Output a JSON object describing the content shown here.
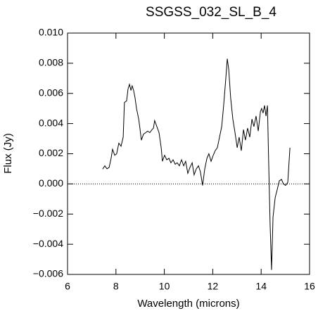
{
  "chart_data": {
    "type": "line",
    "title": "SSGSS_032_SL_B_4",
    "x_label": "Wavelength (microns)",
    "y_label": "Flux (Jy)",
    "color": "#000000",
    "x": [
      7.45,
      7.54,
      7.63,
      7.72,
      7.8,
      7.86,
      7.95,
      8.03,
      8.12,
      8.21,
      8.3,
      8.35,
      8.44,
      8.5,
      8.56,
      8.62,
      8.67,
      8.73,
      8.79,
      8.85,
      8.94,
      8.99,
      9.05,
      9.14,
      9.23,
      9.31,
      9.4,
      9.49,
      9.55,
      9.6,
      9.69,
      9.78,
      9.87,
      9.92,
      10.01,
      10.1,
      10.19,
      10.27,
      10.36,
      10.45,
      10.53,
      10.62,
      10.71,
      10.8,
      10.88,
      10.97,
      11.06,
      11.15,
      11.23,
      11.32,
      11.41,
      11.49,
      11.58,
      11.67,
      11.76,
      11.84,
      11.93,
      12.02,
      12.1,
      12.19,
      12.28,
      12.37,
      12.45,
      12.54,
      12.6,
      12.66,
      12.74,
      12.83,
      12.92,
      13.01,
      13.09,
      13.18,
      13.27,
      13.35,
      13.44,
      13.53,
      13.62,
      13.7,
      13.79,
      13.88,
      13.97,
      14.02,
      14.08,
      14.14,
      14.2,
      14.26,
      14.31,
      14.37,
      14.43,
      14.49,
      14.58,
      14.66,
      14.75,
      14.84,
      14.92,
      15.01,
      15.1,
      15.19
    ],
    "values": [
      0.00098,
      0.0012,
      0.001,
      0.0011,
      0.0017,
      0.0023,
      0.0019,
      0.002,
      0.0027,
      0.0025,
      0.0031,
      0.0054,
      0.0055,
      0.0063,
      0.0066,
      0.0062,
      0.0065,
      0.0062,
      0.0057,
      0.005,
      0.0043,
      0.0037,
      0.0029,
      0.0033,
      0.0034,
      0.0035,
      0.0034,
      0.0036,
      0.0037,
      0.0042,
      0.0038,
      0.0034,
      0.0024,
      0.0015,
      0.0019,
      0.0016,
      0.0017,
      0.0014,
      0.0016,
      0.0013,
      0.0014,
      0.0012,
      0.0016,
      0.0012,
      0.0015,
      0.0007,
      0.0011,
      0.0014,
      0.0006,
      0.001,
      0.0012,
      0.0008,
      -0.0001,
      0.001,
      0.0017,
      0.002,
      0.0015,
      0.0019,
      0.0022,
      0.0024,
      0.0031,
      0.0038,
      0.0052,
      0.007,
      0.0083,
      0.0076,
      0.0057,
      0.0043,
      0.0034,
      0.0024,
      0.0031,
      0.0022,
      0.0036,
      0.0029,
      0.0037,
      0.0031,
      0.0043,
      0.0038,
      0.0045,
      0.0035,
      0.0048,
      0.005,
      0.0047,
      0.0052,
      0.0045,
      0.0052,
      0.0015,
      -0.0027,
      -0.0057,
      -0.0022,
      -0.0009,
      -0.0004,
      0.0002,
      0.0003,
      0.0,
      -0.0001,
      0.0001,
      0.0024
    ],
    "xlim": [
      6,
      16
    ],
    "xticks": [
      6,
      8,
      10,
      12,
      14,
      16
    ],
    "ylim": [
      -0.006,
      0.01
    ],
    "yticks": [
      {
        "value": -0.006,
        "label": "−0.006"
      },
      {
        "value": -0.004,
        "label": "−0.004"
      },
      {
        "value": -0.002,
        "label": "−0.002"
      },
      {
        "value": 0,
        "label": "0.000"
      },
      0.002,
      0.004,
      0.006,
      0.008,
      {
        "value": 0.01,
        "label": "0.010"
      }
    ],
    "zero_line": true
  }
}
